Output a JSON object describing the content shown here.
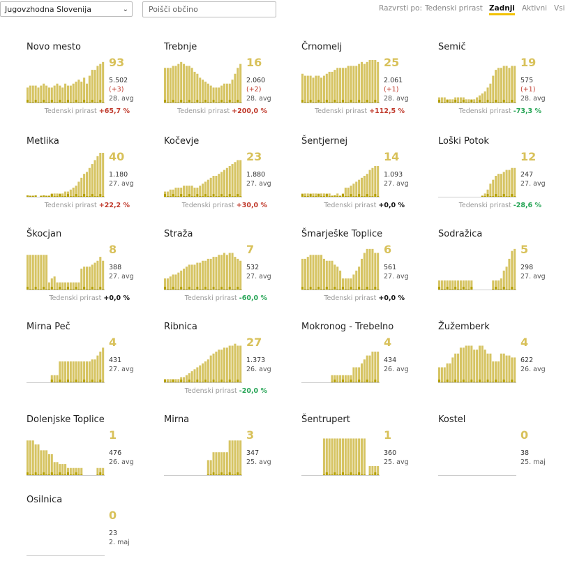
{
  "region_select": {
    "value": "Jugovzhodna Slovenija"
  },
  "search": {
    "placeholder": "Poišči občino"
  },
  "sort": {
    "label": "Razvrsti po:",
    "options": [
      "Tedenski prirast",
      "Zadnji",
      "Aktivni",
      "Vsi"
    ],
    "active": "Zadnji"
  },
  "trend_label": "Tedenski prirast",
  "colors": {
    "bar": "#d6c463",
    "bar_dark": "#b5a000",
    "trend_up": "#c0392b",
    "trend_down": "#27a556"
  },
  "cards": [
    {
      "name": "Novo mesto",
      "current": "93",
      "total": "5.502",
      "delta": "(+3)",
      "date": "28. avg",
      "trend": "+65,7 %",
      "trend_dir": "up",
      "bars": [
        8,
        9,
        9,
        9,
        8,
        9,
        10,
        9,
        8,
        8,
        9,
        10,
        9,
        8,
        10,
        9,
        9,
        10,
        11,
        12,
        11,
        13,
        10,
        14,
        17,
        17,
        19,
        20,
        21
      ]
    },
    {
      "name": "Trebnje",
      "current": "16",
      "total": "2.060",
      "delta": "(+2)",
      "date": "28. avg",
      "trend": "+200,0 %",
      "trend_dir": "up",
      "bars": [
        18,
        18,
        18,
        19,
        19,
        20,
        21,
        20,
        19,
        19,
        18,
        16,
        15,
        13,
        12,
        11,
        10,
        9,
        8,
        8,
        8,
        9,
        10,
        10,
        10,
        12,
        15,
        18,
        20
      ]
    },
    {
      "name": "Črnomelj",
      "current": "25",
      "total": "2.061",
      "delta": "(+1)",
      "date": "28. avg",
      "trend": "+112,5 %",
      "trend_dir": "up",
      "bars": [
        15,
        14,
        14,
        14,
        13,
        14,
        14,
        13,
        14,
        15,
        16,
        16,
        17,
        18,
        18,
        18,
        18,
        19,
        19,
        19,
        19,
        20,
        21,
        20,
        21,
        22,
        22,
        22,
        21
      ]
    },
    {
      "name": "Semič",
      "current": "19",
      "total": "575",
      "delta": "(+1)",
      "date": "28. avg",
      "trend": "-73,3 %",
      "trend_dir": "down",
      "bars": [
        3,
        3,
        3,
        2,
        2,
        2,
        3,
        3,
        3,
        3,
        2,
        2,
        2,
        2,
        3,
        4,
        5,
        6,
        8,
        10,
        14,
        17,
        18,
        18,
        19,
        19,
        18,
        19,
        19
      ]
    },
    {
      "name": "Metlika",
      "current": "40",
      "total": "1.180",
      "delta": "",
      "date": "27. avg",
      "trend": "+22,2 %",
      "trend_dir": "up",
      "bars": [
        1,
        1,
        1,
        1,
        0,
        1,
        1,
        1,
        1,
        2,
        2,
        2,
        2,
        2,
        3,
        3,
        4,
        5,
        6,
        8,
        10,
        12,
        13,
        15,
        17,
        19,
        21,
        24,
        25
      ]
    },
    {
      "name": "Kočevje",
      "current": "23",
      "total": "1.880",
      "delta": "",
      "date": "27. avg",
      "trend": "+30,0 %",
      "trend_dir": "up",
      "bars": [
        3,
        3,
        4,
        4,
        5,
        5,
        5,
        6,
        6,
        6,
        6,
        5,
        5,
        6,
        7,
        8,
        9,
        10,
        11,
        11,
        12,
        13,
        14,
        15,
        16,
        17,
        18,
        19,
        19
      ]
    },
    {
      "name": "Šentjernej",
      "current": "14",
      "total": "1.093",
      "delta": "",
      "date": "27. avg",
      "trend": "+0,0 %",
      "trend_dir": "flat",
      "bars": [
        2,
        2,
        2,
        2,
        2,
        2,
        2,
        2,
        2,
        2,
        2,
        1,
        1,
        2,
        1,
        2,
        5,
        5,
        6,
        7,
        8,
        9,
        10,
        11,
        12,
        14,
        15,
        16,
        16
      ]
    },
    {
      "name": "Loški Potok",
      "current": "12",
      "total": "247",
      "delta": "",
      "date": "27. avg",
      "trend": "-28,6 %",
      "trend_dir": "down",
      "bars": [
        0,
        0,
        0,
        0,
        0,
        0,
        0,
        0,
        0,
        0,
        0,
        0,
        0,
        0,
        0,
        0,
        1,
        2,
        4,
        7,
        9,
        11,
        12,
        12,
        13,
        14,
        14,
        15,
        15
      ]
    },
    {
      "name": "Škocjan",
      "current": "8",
      "total": "388",
      "delta": "",
      "date": "27. avg",
      "trend": "+0,0 %",
      "trend_dir": "flat",
      "bars": [
        18,
        18,
        18,
        18,
        18,
        18,
        18,
        18,
        4,
        6,
        7,
        4,
        4,
        4,
        4,
        4,
        4,
        4,
        4,
        4,
        11,
        12,
        12,
        12,
        13,
        14,
        15,
        17,
        15
      ]
    },
    {
      "name": "Straža",
      "current": "7",
      "total": "532",
      "delta": "",
      "date": "27. avg",
      "trend": "-60,0 %",
      "trend_dir": "down",
      "bars": [
        6,
        6,
        7,
        8,
        8,
        9,
        10,
        11,
        12,
        13,
        13,
        13,
        14,
        14,
        15,
        15,
        16,
        16,
        17,
        17,
        18,
        18,
        19,
        18,
        19,
        19,
        17,
        16,
        15
      ]
    },
    {
      "name": "Šmarješke Toplice",
      "current": "6",
      "total": "561",
      "delta": "",
      "date": "27. avg",
      "trend": "+0,0 %",
      "trend_dir": "flat",
      "bars": [
        16,
        16,
        17,
        18,
        18,
        18,
        18,
        18,
        16,
        15,
        15,
        15,
        13,
        12,
        10,
        6,
        6,
        6,
        6,
        8,
        10,
        12,
        16,
        19,
        21,
        21,
        21,
        19,
        19
      ]
    },
    {
      "name": "Sodražica",
      "current": "5",
      "total": "298",
      "delta": "",
      "date": "27. avg",
      "trend": "",
      "trend_dir": "flat",
      "bars": [
        5,
        5,
        5,
        5,
        5,
        5,
        5,
        5,
        5,
        5,
        5,
        5,
        5,
        0,
        0,
        0,
        0,
        0,
        0,
        0,
        5,
        5,
        5,
        6,
        10,
        12,
        16,
        20,
        21
      ]
    },
    {
      "name": "Mirna Peč",
      "current": "4",
      "total": "431",
      "delta": "",
      "date": "27. avg",
      "trend": "",
      "trend_dir": "flat",
      "bars": [
        0,
        0,
        0,
        0,
        0,
        0,
        0,
        0,
        0,
        4,
        4,
        4,
        11,
        11,
        11,
        11,
        11,
        11,
        11,
        11,
        11,
        11,
        11,
        11,
        12,
        12,
        14,
        16,
        18
      ]
    },
    {
      "name": "Ribnica",
      "current": "27",
      "total": "1.373",
      "delta": "",
      "date": "26. avg",
      "trend": "-20,0 %",
      "trend_dir": "down",
      "bars": [
        2,
        2,
        2,
        2,
        2,
        2,
        3,
        3,
        4,
        5,
        6,
        7,
        8,
        9,
        10,
        11,
        12,
        14,
        15,
        16,
        17,
        17,
        18,
        18,
        19,
        19,
        20,
        19,
        19
      ]
    },
    {
      "name": "Mokronog - Trebelno",
      "current": "4",
      "total": "434",
      "delta": "",
      "date": "26. avg",
      "trend": "",
      "trend_dir": "flat",
      "bars": [
        0,
        0,
        0,
        0,
        0,
        0,
        0,
        0,
        0,
        0,
        0,
        4,
        4,
        4,
        4,
        4,
        4,
        4,
        4,
        8,
        8,
        8,
        10,
        12,
        14,
        14,
        16,
        16,
        16
      ]
    },
    {
      "name": "Žužemberk",
      "current": "4",
      "total": "622",
      "delta": "",
      "date": "26. avg",
      "trend": "",
      "trend_dir": "flat",
      "bars": [
        8,
        8,
        8,
        10,
        10,
        13,
        15,
        15,
        18,
        18,
        19,
        19,
        19,
        17,
        17,
        19,
        19,
        17,
        15,
        15,
        11,
        11,
        11,
        15,
        15,
        14,
        14,
        13,
        13
      ]
    },
    {
      "name": "Dolenjske Toplice",
      "current": "1",
      "total": "476",
      "delta": "",
      "date": "26. avg",
      "trend": "",
      "trend_dir": "flat",
      "bars": [
        18,
        18,
        18,
        16,
        16,
        13,
        13,
        13,
        11,
        11,
        7,
        7,
        6,
        6,
        6,
        4,
        4,
        4,
        4,
        4,
        4,
        0,
        0,
        0,
        0,
        0,
        4,
        4,
        4
      ]
    },
    {
      "name": "Mirna",
      "current": "3",
      "total": "347",
      "delta": "",
      "date": "25. avg",
      "trend": "",
      "trend_dir": "flat",
      "bars": [
        0,
        0,
        0,
        0,
        0,
        0,
        0,
        0,
        0,
        0,
        0,
        0,
        0,
        0,
        0,
        0,
        8,
        8,
        12,
        12,
        12,
        12,
        12,
        12,
        18,
        18,
        18,
        18,
        18
      ]
    },
    {
      "name": "Šentrupert",
      "current": "1",
      "total": "360",
      "delta": "",
      "date": "25. avg",
      "trend": "",
      "trend_dir": "flat",
      "bars": [
        0,
        0,
        0,
        0,
        0,
        0,
        0,
        0,
        19,
        19,
        19,
        19,
        19,
        19,
        19,
        19,
        19,
        19,
        19,
        19,
        19,
        19,
        19,
        19,
        0,
        5,
        5,
        5,
        5
      ]
    },
    {
      "name": "Kostel",
      "current": "0",
      "total": "38",
      "delta": "",
      "date": "25. maj",
      "trend": "",
      "trend_dir": "flat",
      "bars": [
        0,
        0,
        0,
        0,
        0,
        0,
        0,
        0,
        0,
        0,
        0,
        0,
        0,
        0,
        0,
        0,
        0,
        0,
        0,
        0,
        0,
        0,
        0,
        0,
        0,
        0,
        0,
        0,
        0
      ]
    },
    {
      "name": "Osilnica",
      "current": "0",
      "total": "23",
      "delta": "",
      "date": "2. maj",
      "trend": "",
      "trend_dir": "flat",
      "bars": [
        0,
        0,
        0,
        0,
        0,
        0,
        0,
        0,
        0,
        0,
        0,
        0,
        0,
        0,
        0,
        0,
        0,
        0,
        0,
        0,
        0,
        0,
        0,
        0,
        0,
        0,
        0,
        0,
        0
      ]
    }
  ]
}
